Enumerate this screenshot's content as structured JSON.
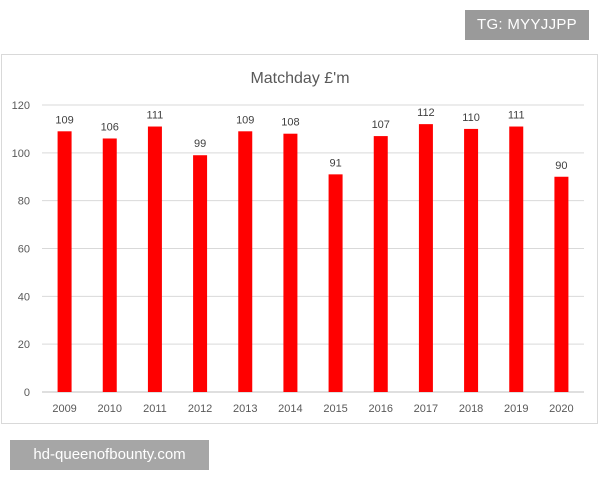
{
  "watermarks": {
    "top": "TG: MYYJJPP",
    "bottom": "hd-queenofbounty.com"
  },
  "chart_data": {
    "type": "bar",
    "title": "Matchday £'m",
    "xlabel": "",
    "ylabel": "",
    "categories": [
      "2009",
      "2010",
      "2011",
      "2012",
      "2013",
      "2014",
      "2015",
      "2016",
      "2017",
      "2018",
      "2019",
      "2020"
    ],
    "values": [
      109,
      106,
      111,
      99,
      109,
      108,
      91,
      107,
      112,
      110,
      111,
      90
    ],
    "ylim": [
      0,
      120
    ],
    "yticks": [
      0,
      20,
      40,
      60,
      80,
      100,
      120
    ],
    "grid": true,
    "legend": "none",
    "bar_color": "#ff0000",
    "data_labels": true
  }
}
